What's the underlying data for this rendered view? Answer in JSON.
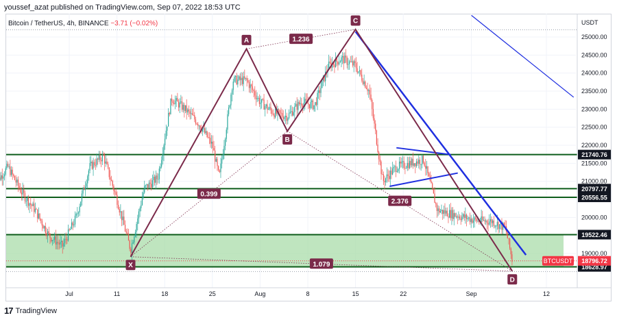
{
  "header": {
    "publisher": "youssef_azat published on TradingView.com, Sep 07, 2022 18:53 UTC"
  },
  "legend": {
    "symbol": "Bitcoin / TetherUS, 4h, BINANCE",
    "change": "−3.71 (−0.02%)"
  },
  "footer": {
    "brand_glyph": "17",
    "brand": "TradingView"
  },
  "colors": {
    "harmonic": "#7b2a4a",
    "channel": "#1f2fe0",
    "level_line": "#0d5c1a",
    "zone_fill": "#a9dca9",
    "up": "#26a69a",
    "down": "#ef5350",
    "label_bg": "#7b2a4a",
    "price_tag_red": "#f23645",
    "price_tag_dark": "#131722"
  },
  "chart_data": {
    "type": "line",
    "title": "Bitcoin / TetherUS, 4h, BINANCE",
    "currency": "USDT",
    "y_scale": "linear",
    "ylim": [
      18100,
      25700
    ],
    "y_ticks": [
      19000,
      19500,
      20000,
      20500,
      21000,
      21500,
      22000,
      22500,
      23000,
      23500,
      24000,
      24500,
      25000
    ],
    "y_tick_labels": [
      "19000.00",
      "19500.00",
      "20000.00",
      "20500.00",
      "21000.00",
      "21500.00",
      "22000.00",
      "22500.00",
      "23000.00",
      "23500.00",
      "24000.00",
      "24500.00",
      "25000.00"
    ],
    "x_tick_labels": [
      "Jul",
      "11",
      "18",
      "25",
      "Aug",
      "8",
      "15",
      "22",
      "Sep",
      "12"
    ],
    "x_tick_dates": [
      "2022-07-04",
      "2022-07-11",
      "2022-07-18",
      "2022-07-25",
      "2022-08-01",
      "2022-08-08",
      "2022-08-15",
      "2022-08-22",
      "2022-09-01",
      "2022-09-12"
    ],
    "price_path": [
      [
        "2022-06-23",
        20900
      ],
      [
        "2022-06-25",
        21400
      ],
      [
        "2022-06-27",
        20700
      ],
      [
        "2022-06-29",
        20200
      ],
      [
        "2022-07-01",
        19500
      ],
      [
        "2022-07-03",
        19200
      ],
      [
        "2022-07-05",
        20000
      ],
      [
        "2022-07-07",
        21400
      ],
      [
        "2022-07-09",
        21700
      ],
      [
        "2022-07-11",
        20500
      ],
      [
        "2022-07-13",
        19100
      ],
      [
        "2022-07-15",
        20800
      ],
      [
        "2022-07-17",
        21100
      ],
      [
        "2022-07-19",
        23300
      ],
      [
        "2022-07-21",
        23000
      ],
      [
        "2022-07-23",
        22600
      ],
      [
        "2022-07-25",
        22000
      ],
      [
        "2022-07-26",
        21100
      ],
      [
        "2022-07-28",
        23800
      ],
      [
        "2022-07-30",
        23800
      ],
      [
        "2022-08-01",
        23200
      ],
      [
        "2022-08-03",
        22900
      ],
      [
        "2022-08-05",
        22800
      ],
      [
        "2022-08-07",
        23200
      ],
      [
        "2022-08-09",
        23100
      ],
      [
        "2022-08-11",
        24200
      ],
      [
        "2022-08-13",
        24400
      ],
      [
        "2022-08-15",
        24200
      ],
      [
        "2022-08-17",
        23500
      ],
      [
        "2022-08-19",
        21000
      ],
      [
        "2022-08-21",
        21400
      ],
      [
        "2022-08-23",
        21500
      ],
      [
        "2022-08-25",
        21600
      ],
      [
        "2022-08-27",
        20200
      ],
      [
        "2022-08-29",
        20100
      ],
      [
        "2022-08-31",
        20000
      ],
      [
        "2022-09-02",
        19900
      ],
      [
        "2022-09-04",
        19900
      ],
      [
        "2022-09-06",
        19700
      ],
      [
        "2022-09-07",
        18797
      ]
    ],
    "harmonic_pattern": {
      "points": [
        {
          "label": "X",
          "date": "2022-07-13",
          "price": 18910
        },
        {
          "label": "A",
          "date": "2022-07-30",
          "price": 24670
        },
        {
          "label": "B",
          "date": "2022-08-05",
          "price": 22390
        },
        {
          "label": "C",
          "date": "2022-08-15",
          "price": 25210
        },
        {
          "label": "D",
          "date": "2022-09-07",
          "price": 18510
        }
      ],
      "ratios": [
        {
          "label": "1.236",
          "between": [
            "A",
            "C"
          ]
        },
        {
          "label": "0.399",
          "between": [
            "X",
            "B"
          ]
        },
        {
          "label": "2.376",
          "between": [
            "B",
            "D"
          ]
        },
        {
          "label": "1.079",
          "between": [
            "X",
            "D"
          ]
        }
      ]
    },
    "horizontal_levels": [
      21740.76,
      20797.77,
      20556.55,
      19522.46,
      18628.97
    ],
    "level_labels": [
      "21740.76",
      "20797.77",
      "20556.55",
      "19522.46",
      "18628.97"
    ],
    "support_zone": {
      "from": 18628.97,
      "to": 19522.46
    },
    "current_price": {
      "symbol": "BTCUSDT",
      "value": "18796.72",
      "price": 18796.72
    },
    "trendlines": [
      {
        "from": [
          "2022-08-15",
          25150
        ],
        "to": [
          "2022-09-09",
          18960
        ]
      },
      {
        "from": [
          "2022-09-01",
          25600
        ],
        "to": [
          "2022-09-16",
          23330
        ]
      }
    ],
    "triangle": {
      "upper": [
        [
          "2022-08-21",
          21930
        ],
        [
          "2022-08-29",
          21740
        ]
      ],
      "lower": [
        [
          "2022-08-20",
          20860
        ],
        [
          "2022-08-30",
          21230
        ]
      ]
    }
  }
}
